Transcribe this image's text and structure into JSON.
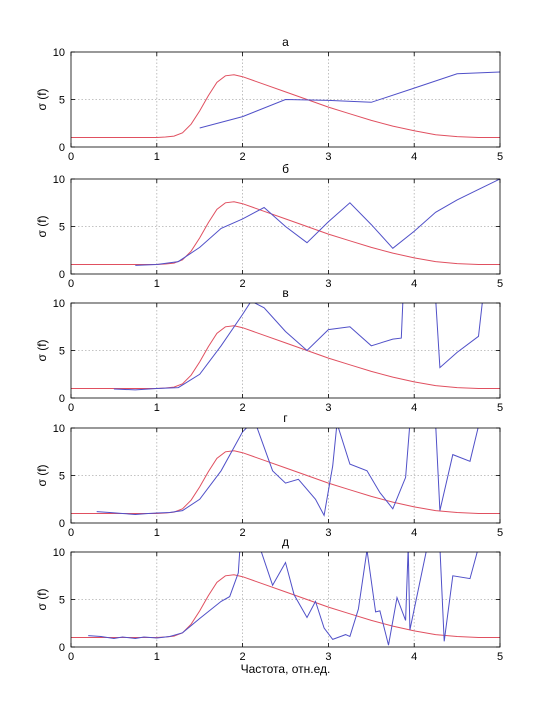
{
  "colors": {
    "theory": "#e05060",
    "measured": "#5050c8",
    "grid": "#b0b0b0",
    "axes": "#000000"
  },
  "figure": {
    "xlabel": "Частота, отн.ед."
  },
  "chart_data": [
    {
      "type": "line",
      "title": "а",
      "ylabel": "σ (f)",
      "xlim": [
        0,
        5
      ],
      "ylim": [
        0,
        10
      ],
      "xticks": [
        0,
        1,
        2,
        3,
        4,
        5
      ],
      "yticks": [
        0,
        5,
        10
      ],
      "grid": true,
      "series": [
        {
          "x": [
            0,
            0.5,
            1,
            1.1,
            1.2,
            1.3,
            1.4,
            1.5,
            1.6,
            1.7,
            1.8,
            1.9,
            2,
            2.25,
            2.5,
            2.75,
            3,
            3.25,
            3.5,
            3.75,
            4,
            4.25,
            4.5,
            4.75,
            5
          ],
          "y": [
            1,
            1,
            1,
            1.05,
            1.15,
            1.5,
            2.4,
            3.8,
            5.4,
            6.8,
            7.5,
            7.6,
            7.4,
            6.6,
            5.8,
            5,
            4.2,
            3.5,
            2.8,
            2.2,
            1.7,
            1.3,
            1.1,
            1.0,
            1.0
          ]
        },
        {
          "x": [
            1.5,
            2,
            2.5,
            3,
            3.5,
            4,
            4.5,
            5
          ],
          "y": [
            2,
            3.2,
            5,
            4.9,
            4.7,
            6.2,
            7.7,
            7.9
          ]
        }
      ]
    },
    {
      "type": "line",
      "title": "б",
      "ylabel": "σ (f)",
      "xlim": [
        0,
        5
      ],
      "ylim": [
        0,
        10
      ],
      "xticks": [
        0,
        1,
        2,
        3,
        4,
        5
      ],
      "yticks": [
        0,
        5,
        10
      ],
      "grid": true,
      "series": [
        {
          "x": [
            0,
            0.5,
            1,
            1.1,
            1.2,
            1.3,
            1.4,
            1.5,
            1.6,
            1.7,
            1.8,
            1.9,
            2,
            2.25,
            2.5,
            2.75,
            3,
            3.25,
            3.5,
            3.75,
            4,
            4.25,
            4.5,
            4.75,
            5
          ],
          "y": [
            1,
            1,
            1,
            1.05,
            1.15,
            1.5,
            2.4,
            3.8,
            5.4,
            6.8,
            7.5,
            7.6,
            7.4,
            6.6,
            5.8,
            5,
            4.2,
            3.5,
            2.8,
            2.2,
            1.7,
            1.3,
            1.1,
            1.0,
            1.0
          ]
        },
        {
          "x": [
            0.75,
            1,
            1.25,
            1.5,
            1.75,
            2,
            2.25,
            2.5,
            2.75,
            3,
            3.25,
            3.5,
            3.75,
            4,
            4.25,
            4.5,
            4.75,
            5
          ],
          "y": [
            0.9,
            1.0,
            1.3,
            2.8,
            4.8,
            5.8,
            7.0,
            5.0,
            3.3,
            5.5,
            7.5,
            5.2,
            2.7,
            4.5,
            6.5,
            7.8,
            8.9,
            10
          ]
        }
      ]
    },
    {
      "type": "line",
      "title": "в",
      "ylabel": "σ (f)",
      "xlim": [
        0,
        5
      ],
      "ylim": [
        0,
        10
      ],
      "xticks": [
        0,
        1,
        2,
        3,
        4,
        5
      ],
      "yticks": [
        0,
        5,
        10
      ],
      "grid": true,
      "series": [
        {
          "x": [
            0,
            0.5,
            1,
            1.1,
            1.2,
            1.3,
            1.4,
            1.5,
            1.6,
            1.7,
            1.8,
            1.9,
            2,
            2.25,
            2.5,
            2.75,
            3,
            3.25,
            3.5,
            3.75,
            4,
            4.25,
            4.5,
            4.75,
            5
          ],
          "y": [
            1,
            1,
            1,
            1.05,
            1.15,
            1.5,
            2.4,
            3.8,
            5.4,
            6.8,
            7.5,
            7.6,
            7.4,
            6.6,
            5.8,
            5,
            4.2,
            3.5,
            2.8,
            2.2,
            1.7,
            1.3,
            1.1,
            1.0,
            1.0
          ]
        },
        {
          "x": [
            0.5,
            0.75,
            1,
            1.25,
            1.5,
            1.75,
            2,
            2.1,
            2.25,
            2.5,
            2.75,
            3,
            3.25,
            3.5,
            3.75,
            3.85,
            3.87,
            4.25,
            4.3,
            4.5,
            4.75,
            4.8
          ],
          "y": [
            0.95,
            0.85,
            1.0,
            1.1,
            2.5,
            5.5,
            8.8,
            10.2,
            9.5,
            7,
            5,
            7.2,
            7.5,
            5.5,
            6.2,
            6.3,
            10.5,
            10.5,
            3.2,
            4.8,
            6.5,
            10.5
          ]
        }
      ]
    },
    {
      "type": "line",
      "title": "г",
      "ylabel": "σ (f)",
      "xlim": [
        0,
        5
      ],
      "ylim": [
        0,
        10
      ],
      "xticks": [
        0,
        1,
        2,
        3,
        4,
        5
      ],
      "yticks": [
        0,
        5,
        10
      ],
      "grid": true,
      "series": [
        {
          "x": [
            0,
            0.5,
            1,
            1.1,
            1.2,
            1.3,
            1.4,
            1.5,
            1.6,
            1.7,
            1.8,
            1.9,
            2,
            2.25,
            2.5,
            2.75,
            3,
            3.25,
            3.5,
            3.75,
            4,
            4.25,
            4.5,
            4.75,
            5
          ],
          "y": [
            1,
            1,
            1,
            1.05,
            1.15,
            1.5,
            2.4,
            3.8,
            5.4,
            6.8,
            7.5,
            7.6,
            7.4,
            6.6,
            5.8,
            5,
            4.2,
            3.5,
            2.8,
            2.2,
            1.7,
            1.3,
            1.1,
            1.0,
            1.0
          ]
        },
        {
          "x": [
            0.3,
            0.45,
            0.6,
            0.75,
            0.9,
            1,
            1.15,
            1.3,
            1.5,
            1.75,
            2,
            2.1,
            2.15,
            2.35,
            2.5,
            2.65,
            2.85,
            2.95,
            3.05,
            3.1,
            3.25,
            3.45,
            3.6,
            3.75,
            3.9,
            3.95,
            4.25,
            4.3,
            4.45,
            4.65,
            4.75,
            4.85
          ],
          "y": [
            1.2,
            1.1,
            1.0,
            0.9,
            1.0,
            1.05,
            1.1,
            1.3,
            2.5,
            5.5,
            9.6,
            10.5,
            10.5,
            5.5,
            4.2,
            4.6,
            2.5,
            0.8,
            6,
            10.5,
            6.2,
            5.5,
            3.2,
            1.5,
            4.8,
            10.5,
            10.5,
            1.3,
            7.2,
            6.5,
            10.2,
            10.5
          ]
        }
      ]
    },
    {
      "type": "line",
      "title": "д",
      "ylabel": "σ (f)",
      "xlim": [
        0,
        5
      ],
      "ylim": [
        0,
        10
      ],
      "xticks": [
        0,
        1,
        2,
        3,
        4,
        5
      ],
      "yticks": [
        0,
        5,
        10
      ],
      "grid": true,
      "series": [
        {
          "x": [
            0,
            0.5,
            1,
            1.1,
            1.2,
            1.3,
            1.4,
            1.5,
            1.6,
            1.7,
            1.8,
            1.9,
            2,
            2.25,
            2.5,
            2.75,
            3,
            3.25,
            3.5,
            3.75,
            4,
            4.25,
            4.5,
            4.75,
            5
          ],
          "y": [
            1,
            1,
            1,
            1.05,
            1.15,
            1.5,
            2.4,
            3.8,
            5.4,
            6.8,
            7.5,
            7.6,
            7.4,
            6.6,
            5.8,
            5,
            4.2,
            3.5,
            2.8,
            2.2,
            1.7,
            1.3,
            1.1,
            1.0,
            1.0
          ]
        },
        {
          "x": [
            0.2,
            0.35,
            0.5,
            0.6,
            0.75,
            0.85,
            1,
            1.15,
            1.3,
            1.5,
            1.75,
            1.85,
            1.95,
            1.97,
            2.2,
            2.35,
            2.5,
            2.6,
            2.75,
            2.85,
            2.95,
            3.05,
            3.2,
            3.25,
            3.35,
            3.45,
            3.55,
            3.6,
            3.7,
            3.8,
            3.9,
            3.93,
            3.95,
            4.15,
            4.3,
            4.35,
            4.45,
            4.65,
            4.75,
            4.85
          ],
          "y": [
            1.2,
            1.1,
            0.9,
            1.05,
            0.9,
            1.05,
            0.95,
            1.1,
            1.5,
            3,
            4.8,
            5.3,
            7.8,
            10.5,
            10.5,
            6.5,
            8.9,
            5.5,
            3.1,
            4.8,
            2,
            0.8,
            1.3,
            1.1,
            4,
            10.2,
            3.7,
            3.8,
            0.2,
            5.2,
            2.8,
            10.5,
            1.8,
            10.5,
            10.5,
            0.6,
            7.5,
            7.2,
            10.5,
            10.5
          ]
        }
      ]
    }
  ]
}
